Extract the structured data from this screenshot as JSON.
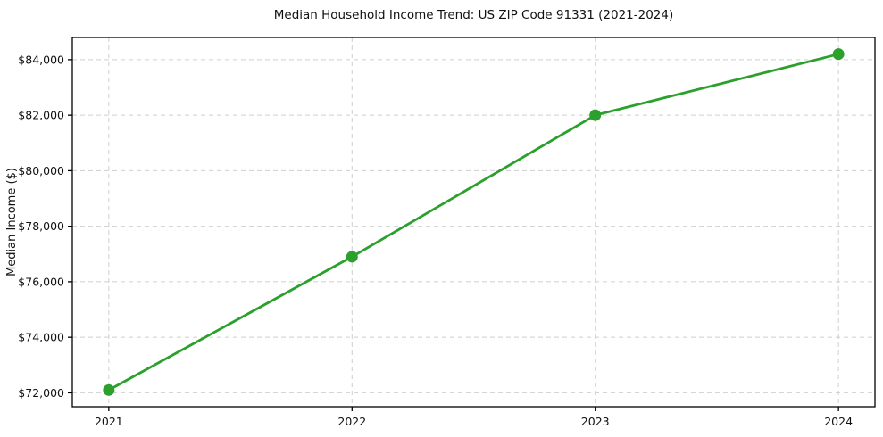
{
  "chart_data": {
    "type": "line",
    "title": "Median Household Income Trend: US ZIP Code 91331 (2021-2024)",
    "xlabel": "",
    "ylabel": "Median Income ($)",
    "x": [
      2021,
      2022,
      2023,
      2024
    ],
    "x_tick_labels": [
      "2021",
      "2022",
      "2023",
      "2024"
    ],
    "series": [
      {
        "values": [
          72100,
          76900,
          82000,
          84200
        ],
        "color": "#2ca02c",
        "marker": "circle"
      }
    ],
    "y_ticks": [
      72000,
      74000,
      76000,
      78000,
      80000,
      82000,
      84000
    ],
    "y_tick_labels": [
      "$72,000",
      "$74,000",
      "$76,000",
      "$78,000",
      "$80,000",
      "$82,000",
      "$84,000"
    ],
    "xlim": [
      2020.85,
      2024.15
    ],
    "ylim": [
      71500,
      84800
    ],
    "grid": true,
    "grid_style": "dashed",
    "grid_color": "#cfcfcf",
    "spine_color": "#000000",
    "background_color": "#ffffff",
    "legend_position": "none"
  }
}
